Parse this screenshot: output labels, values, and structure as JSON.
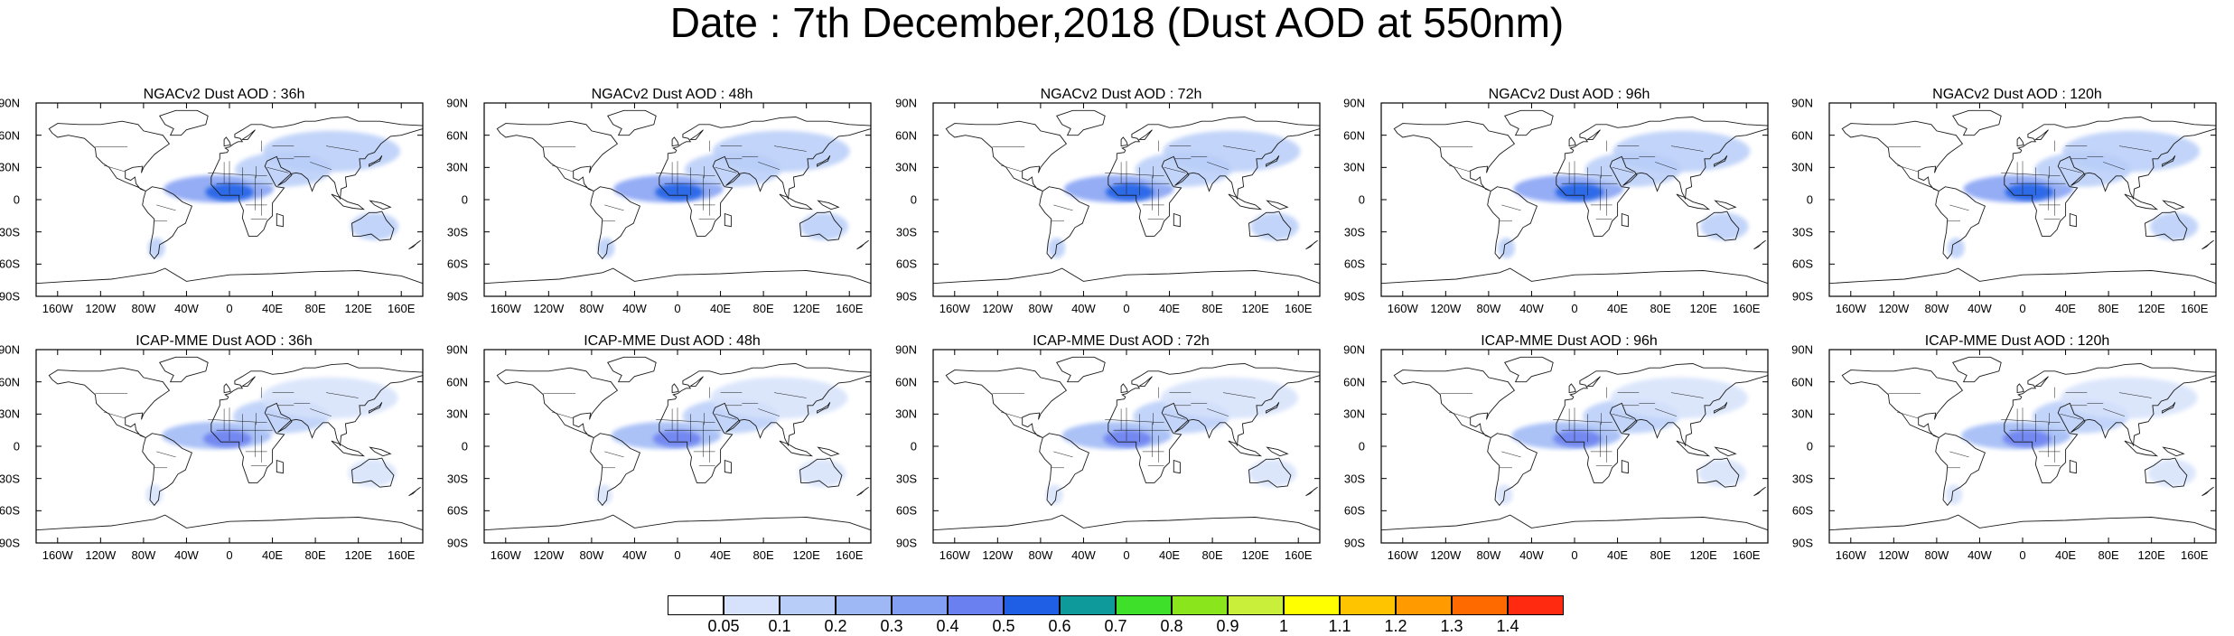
{
  "title": "Date : 7th December,2018 (Dust AOD at 550nm)",
  "colors": {
    "land_outline": "#1a1a1a",
    "frame": "#000000"
  },
  "axis_ticks": {
    "y": [
      "90N",
      "60N",
      "30N",
      "0",
      "30S",
      "60S",
      "90S"
    ],
    "x": [
      "160W",
      "120W",
      "80W",
      "40W",
      "0",
      "40E",
      "80E",
      "120E",
      "160E"
    ]
  },
  "panels": [
    {
      "title": "NGACv2 Dust AOD : 36h",
      "model": "NGACv2",
      "lead": "36h"
    },
    {
      "title": "NGACv2 Dust AOD : 48h",
      "model": "NGACv2",
      "lead": "48h"
    },
    {
      "title": "NGACv2 Dust AOD : 72h",
      "model": "NGACv2",
      "lead": "72h"
    },
    {
      "title": "NGACv2 Dust AOD : 96h",
      "model": "NGACv2",
      "lead": "96h"
    },
    {
      "title": "NGACv2 Dust AOD : 120h",
      "model": "NGACv2",
      "lead": "120h"
    },
    {
      "title": "ICAP-MME Dust AOD : 36h",
      "model": "ICAP-MME",
      "lead": "36h"
    },
    {
      "title": "ICAP-MME Dust AOD : 48h",
      "model": "ICAP-MME",
      "lead": "48h"
    },
    {
      "title": "ICAP-MME Dust AOD : 72h",
      "model": "ICAP-MME",
      "lead": "72h"
    },
    {
      "title": "ICAP-MME Dust AOD : 96h",
      "model": "ICAP-MME",
      "lead": "96h"
    },
    {
      "title": "ICAP-MME Dust AOD : 120h",
      "model": "ICAP-MME",
      "lead": "120h"
    }
  ],
  "colorbar": {
    "labels": [
      "0.05",
      "0.1",
      "0.2",
      "0.3",
      "0.4",
      "0.5",
      "0.6",
      "0.7",
      "0.8",
      "0.9",
      "1",
      "1.1",
      "1.2",
      "1.3",
      "1.4"
    ],
    "colors": [
      "#ffffff",
      "#d6e2fb",
      "#b8cdf8",
      "#9db8f5",
      "#829ff3",
      "#6a7ff0",
      "#1f5fe6",
      "#0e9a9a",
      "#3ee02a",
      "#8be51d",
      "#c9ef3a",
      "#ffff00",
      "#ffc400",
      "#ff9a00",
      "#ff6a00",
      "#ff2a10"
    ]
  },
  "dust_regions": [
    {
      "name": "atlantic-sahara-plume",
      "lon": -10,
      "lat": 10,
      "rlon": 32,
      "rlat": 8,
      "level": 0.35
    },
    {
      "name": "sahel-core",
      "lon": 0,
      "lat": 7,
      "rlon": 14,
      "rlat": 5,
      "level": 0.5
    },
    {
      "name": "arabia-iran",
      "lon": 50,
      "lat": 28,
      "rlon": 28,
      "rlat": 10,
      "level": 0.15
    },
    {
      "name": "central-asia-china",
      "lon": 95,
      "lat": 45,
      "rlon": 40,
      "rlat": 12,
      "level": 0.1
    },
    {
      "name": "australia",
      "lon": 135,
      "lat": -25,
      "rlon": 14,
      "rlat": 8,
      "level": 0.1
    },
    {
      "name": "patagonia",
      "lon": -68,
      "lat": -45,
      "rlon": 5,
      "rlat": 6,
      "level": 0.1
    }
  ]
}
